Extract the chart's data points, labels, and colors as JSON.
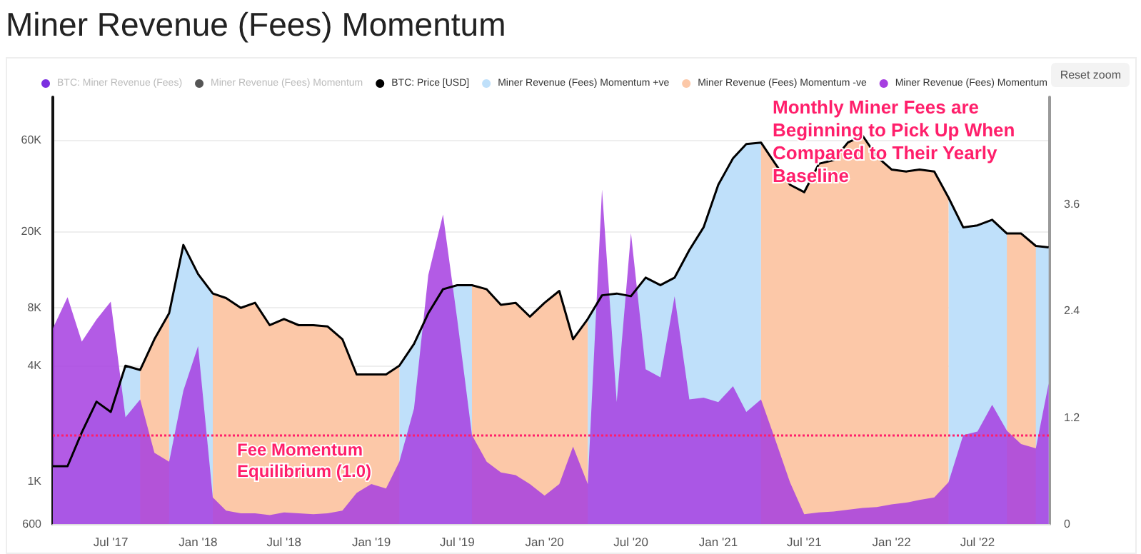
{
  "chart_data": {
    "type": "area",
    "title": "Miner Revenue (Fees) Momentum",
    "x": [
      "2017-03-01",
      "2017-04",
      "2017-05",
      "2017-06",
      "2017-07",
      "2017-08",
      "2017-09",
      "2017-10",
      "2017-11",
      "2017-12",
      "2018-01",
      "2018-02",
      "2018-03",
      "2018-04",
      "2018-05",
      "2018-06",
      "2018-07",
      "2018-08",
      "2018-09",
      "2018-10",
      "2018-11",
      "2018-12",
      "2019-01",
      "2019-02",
      "2019-03",
      "2019-04",
      "2019-05",
      "2019-06",
      "2019-07",
      "2019-08",
      "2019-09",
      "2019-10",
      "2019-11",
      "2019-12",
      "2020-01",
      "2020-02",
      "2020-03",
      "2020-04",
      "2020-05",
      "2020-06",
      "2020-07",
      "2020-08",
      "2020-09",
      "2020-10",
      "2020-11",
      "2020-12",
      "2021-01",
      "2021-02",
      "2021-03",
      "2021-04",
      "2021-05",
      "2021-06",
      "2021-07",
      "2021-08",
      "2021-09",
      "2021-10",
      "2021-11",
      "2021-12",
      "2022-01",
      "2022-02",
      "2022-03",
      "2022-04",
      "2022-05",
      "2022-06",
      "2022-07",
      "2022-08",
      "2022-09",
      "2022-10",
      "2022-11",
      "2022-11-28"
    ],
    "series": [
      {
        "name": "BTC: Miner Revenue (Fees)",
        "color": "#7b2fe0",
        "values": [
          null,
          null,
          null,
          null,
          null,
          null,
          null,
          null,
          null,
          null,
          null,
          null,
          null,
          null,
          null,
          null,
          null,
          null,
          null,
          null,
          null,
          null,
          null,
          null,
          null,
          null,
          null,
          null,
          null,
          null,
          null,
          null,
          null,
          null,
          null,
          null,
          null,
          null,
          null,
          null,
          null,
          null,
          null,
          null,
          null,
          null,
          null,
          null,
          null,
          null,
          null,
          null,
          null,
          null,
          null,
          null,
          null,
          null,
          null,
          null,
          null,
          null,
          null,
          null,
          null,
          null,
          null,
          null,
          null,
          null
        ]
      },
      {
        "name": "Miner Revenue (Fees) Momentum",
        "type": "line",
        "color": "#555555",
        "values": [
          null,
          null,
          null,
          null,
          null,
          null,
          null,
          null,
          null,
          null,
          null,
          null,
          null,
          null,
          null,
          null,
          null,
          null,
          null,
          null,
          null,
          null,
          null,
          null,
          null,
          null,
          null,
          null,
          null,
          null,
          null,
          null,
          null,
          null,
          null,
          null,
          null,
          null,
          null,
          null,
          null,
          null,
          null,
          null,
          null,
          null,
          null,
          null,
          null,
          null,
          null,
          null,
          null,
          null,
          null,
          null,
          null,
          null,
          null,
          null,
          null,
          null,
          null,
          null,
          null,
          null,
          null,
          null,
          null,
          null
        ]
      },
      {
        "name": "BTC: Price [USD]",
        "type": "line",
        "color": "#000000",
        "values": [
          1200,
          1200,
          1800,
          2600,
          2300,
          4000,
          3800,
          5500,
          7500,
          17000,
          12000,
          9500,
          9000,
          8000,
          8500,
          6500,
          7000,
          6500,
          6500,
          6400,
          5500,
          3600,
          3600,
          3600,
          4000,
          5200,
          7500,
          10000,
          10500,
          10500,
          10000,
          8300,
          8500,
          7200,
          8500,
          9800,
          5500,
          7000,
          9300,
          9500,
          9200,
          11500,
          10500,
          11500,
          16000,
          21000,
          35000,
          48000,
          57000,
          58000,
          45000,
          35000,
          32000,
          45000,
          47000,
          58000,
          63000,
          49000,
          42000,
          41000,
          42000,
          41000,
          30000,
          21000,
          21500,
          23000,
          19500,
          19500,
          16800,
          16500
        ]
      },
      {
        "name": "Miner Revenue (Fees) Momentum +ve",
        "color": "#bfe0fa",
        "values": [
          1200,
          1200,
          1800,
          2600,
          2300,
          4000,
          3800,
          null,
          7500,
          17000,
          12000,
          9500,
          null,
          null,
          null,
          null,
          null,
          null,
          null,
          null,
          null,
          null,
          null,
          null,
          4000,
          5200,
          7500,
          10000,
          10500,
          10500,
          null,
          null,
          null,
          null,
          null,
          null,
          null,
          7000,
          9300,
          9500,
          9200,
          11500,
          10500,
          11500,
          16000,
          21000,
          35000,
          48000,
          57000,
          58000,
          null,
          null,
          null,
          null,
          null,
          null,
          null,
          null,
          null,
          null,
          null,
          null,
          30000,
          21000,
          21500,
          23000,
          19500,
          19500,
          16800,
          16500
        ]
      },
      {
        "name": "Miner Revenue (Fees) Momentum -ve",
        "color": "#fcc8a8",
        "values": [
          null,
          null,
          null,
          null,
          null,
          null,
          3800,
          5500,
          7500,
          null,
          null,
          9500,
          9000,
          8000,
          8500,
          6500,
          7000,
          6500,
          6500,
          6400,
          5500,
          3600,
          3600,
          3600,
          4000,
          null,
          null,
          null,
          null,
          10500,
          10000,
          8300,
          8500,
          7200,
          8500,
          9800,
          5500,
          7000,
          null,
          null,
          null,
          null,
          null,
          null,
          null,
          null,
          null,
          null,
          null,
          58000,
          45000,
          35000,
          32000,
          45000,
          47000,
          58000,
          63000,
          49000,
          42000,
          41000,
          42000,
          41000,
          30000,
          null,
          null,
          null,
          19500,
          19500,
          16800,
          null
        ]
      },
      {
        "name": "Miner Revenue (Fees) Momentum",
        "axis": "y2",
        "color": "#a63ee0",
        "values": [
          2.2,
          2.55,
          2.05,
          2.3,
          2.5,
          1.2,
          1.4,
          0.8,
          0.7,
          1.5,
          2.0,
          0.3,
          0.15,
          0.12,
          0.12,
          0.1,
          0.13,
          0.12,
          0.11,
          0.12,
          0.15,
          0.35,
          0.45,
          0.4,
          0.7,
          1.3,
          2.8,
          3.48,
          2.3,
          1.0,
          0.7,
          0.58,
          0.55,
          0.45,
          0.32,
          0.45,
          0.87,
          0.45,
          3.76,
          1.37,
          3.27,
          1.74,
          1.65,
          2.56,
          1.4,
          1.42,
          1.37,
          1.55,
          1.26,
          1.4,
          0.95,
          0.47,
          0.11,
          0.13,
          0.14,
          0.16,
          0.18,
          0.19,
          0.22,
          0.24,
          0.27,
          0.3,
          0.47,
          1.0,
          1.04,
          1.34,
          1.05,
          0.9,
          0.85,
          1.58
        ]
      }
    ],
    "xlim": [
      "2017-03-01",
      "2022-11-30"
    ],
    "xticks": [
      {
        "value": "2017-07-01",
        "label": "Jul '17"
      },
      {
        "value": "2018-01-01",
        "label": "Jan '18"
      },
      {
        "value": "2018-07-01",
        "label": "Jul '18"
      },
      {
        "value": "2019-01-01",
        "label": "Jan '19"
      },
      {
        "value": "2019-07-01",
        "label": "Jul '19"
      },
      {
        "value": "2020-01-01",
        "label": "Jan '20"
      },
      {
        "value": "2020-07-01",
        "label": "Jul '20"
      },
      {
        "value": "2021-01-01",
        "label": "Jan '21"
      },
      {
        "value": "2021-07-01",
        "label": "Jul '21"
      },
      {
        "value": "2022-01-01",
        "label": "Jan '22"
      },
      {
        "value": "2022-07-01",
        "label": "Jul '22"
      }
    ],
    "ylim": [
      600,
      100000
    ],
    "yticks": [
      600,
      {
        "value": 1000,
        "label": "1K"
      },
      {
        "value": 4000,
        "label": "4K"
      },
      {
        "value": 8000,
        "label": "8K"
      },
      {
        "value": 20000,
        "label": "20K"
      },
      {
        "value": 60000,
        "label": "60K"
      }
    ],
    "log": "y",
    "y2lim": [
      0,
      4.8
    ],
    "y2ticks": [
      0,
      1.2,
      2.4,
      3.6
    ],
    "grid": "y",
    "legend": "top",
    "ref_lines": [
      {
        "axis": "y2",
        "value": 1.0,
        "label": "Fee Momentum Equilibrium (1.0)",
        "color": "#ff1f6b",
        "line_style": "dotted"
      }
    ],
    "annotations": [
      "Monthly Miner Fees are Beginning to Pick Up When Compared to Their Yearly Baseline",
      "Reset zoom"
    ]
  }
}
